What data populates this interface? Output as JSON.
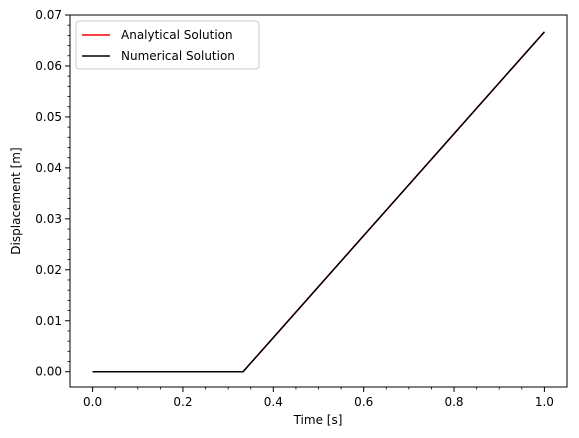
{
  "chart_data": {
    "type": "line",
    "title": "",
    "xlabel": "Time [s]",
    "ylabel": "Displacement [m]",
    "xlim": [
      -0.05,
      1.05
    ],
    "ylim": [
      -0.003,
      0.07
    ],
    "xticks": [
      0.0,
      0.2,
      0.4,
      0.6,
      0.8,
      1.0
    ],
    "xtick_labels": [
      "0.0",
      "0.2",
      "0.4",
      "0.6",
      "0.8",
      "1.0"
    ],
    "yticks": [
      0.0,
      0.01,
      0.02,
      0.03,
      0.04,
      0.05,
      0.06,
      0.07
    ],
    "ytick_labels": [
      "0.00",
      "0.01",
      "0.02",
      "0.03",
      "0.04",
      "0.05",
      "0.06",
      "0.07"
    ],
    "grid": false,
    "legend_position": "top-left",
    "series": [
      {
        "name": "Analytical Solution",
        "color": "#ff0000",
        "x": [
          0.0,
          0.1,
          0.2,
          0.3,
          0.333,
          0.34,
          0.4,
          0.5,
          0.6,
          0.7,
          0.8,
          0.9,
          1.0
        ],
        "y": [
          0.0,
          0.0,
          0.0,
          0.0,
          0.0,
          0.0007,
          0.0067,
          0.0167,
          0.0267,
          0.0367,
          0.0467,
          0.0567,
          0.0667
        ]
      },
      {
        "name": "Numerical Solution",
        "color": "#000000",
        "x": [
          0.0,
          0.1,
          0.2,
          0.3,
          0.333,
          0.34,
          0.4,
          0.5,
          0.6,
          0.7,
          0.8,
          0.9,
          1.0
        ],
        "y": [
          0.0,
          0.0,
          0.0,
          0.0,
          0.0,
          0.0007,
          0.0067,
          0.0167,
          0.0267,
          0.0367,
          0.0467,
          0.0567,
          0.0667
        ]
      }
    ]
  }
}
